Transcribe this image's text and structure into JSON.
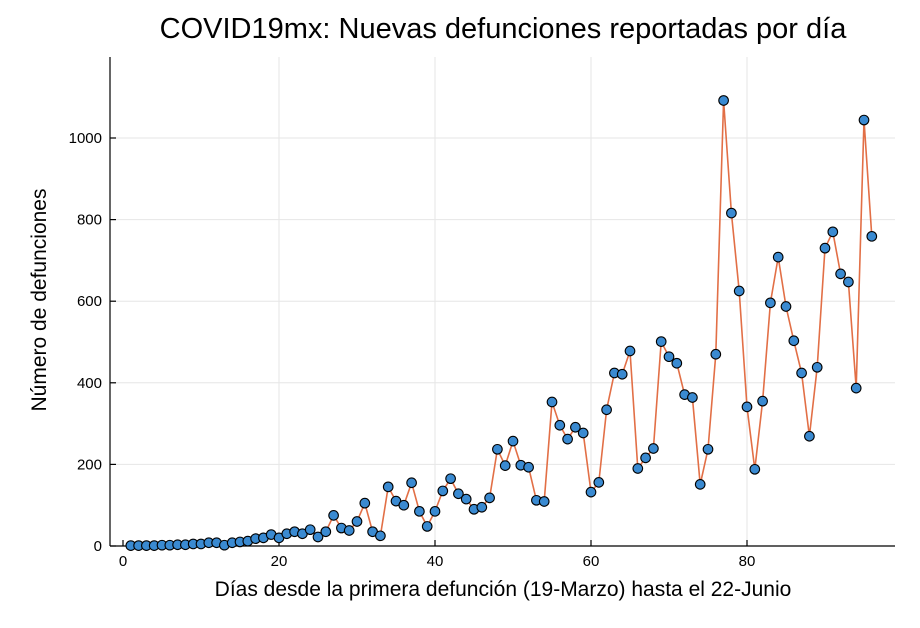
{
  "chart_data": {
    "type": "line",
    "title": "COVID19mx: Nuevas defunciones reportadas por día",
    "xlabel": "Días desde la primera defunción (19-Marzo) hasta el 22-Junio",
    "ylabel": "Número de defunciones",
    "xlim": [
      0,
      96
    ],
    "ylim": [
      0,
      1090
    ],
    "xticks": [
      0,
      20,
      40,
      60,
      80
    ],
    "yticks": [
      0,
      200,
      400,
      600,
      800,
      1000
    ],
    "grid": true,
    "legend": "none",
    "colors": {
      "line": "#e26f46",
      "marker": "#3a8ad1",
      "marker_edge": "#000000"
    },
    "series": [
      {
        "x": [
          1,
          2,
          3,
          4,
          5,
          6,
          7,
          8,
          9,
          10,
          11,
          12,
          13,
          14,
          15,
          16,
          17,
          18,
          19,
          20,
          21,
          22,
          23,
          24,
          25,
          26,
          27,
          28,
          29,
          30,
          31,
          32,
          33,
          34,
          35,
          36,
          37,
          38,
          39,
          40,
          41,
          42,
          43,
          44,
          45,
          46,
          47,
          48,
          49,
          50,
          51,
          52,
          53,
          54,
          55,
          56,
          57,
          58,
          59,
          60,
          61,
          62,
          63,
          64,
          65,
          66,
          67,
          68,
          69,
          70,
          71,
          72,
          73,
          74,
          75,
          76,
          77,
          78,
          79,
          80,
          81,
          82,
          83,
          84,
          85,
          86,
          87,
          88,
          89,
          90,
          91,
          92,
          93,
          94,
          95,
          96
        ],
        "y": [
          1,
          1,
          1,
          1,
          2,
          2,
          3,
          3,
          5,
          5,
          8,
          8,
          2,
          8,
          10,
          12,
          18,
          20,
          28,
          20,
          30,
          35,
          30,
          40,
          22,
          35,
          75,
          44,
          38,
          60,
          105,
          35,
          25,
          145,
          110,
          100,
          155,
          85,
          48,
          85,
          135,
          165,
          128,
          115,
          90,
          95,
          118,
          237,
          197,
          257,
          198,
          193,
          112,
          109,
          353,
          296,
          262,
          291,
          277,
          132,
          156,
          334,
          424,
          421,
          478,
          190,
          216,
          239,
          501,
          464,
          448,
          371,
          364,
          151,
          237,
          470,
          1092,
          816,
          625,
          341,
          188,
          355,
          596,
          708,
          587,
          503,
          424,
          269,
          438,
          730,
          770,
          667,
          647,
          387,
          1044,
          759
        ]
      }
    ]
  }
}
